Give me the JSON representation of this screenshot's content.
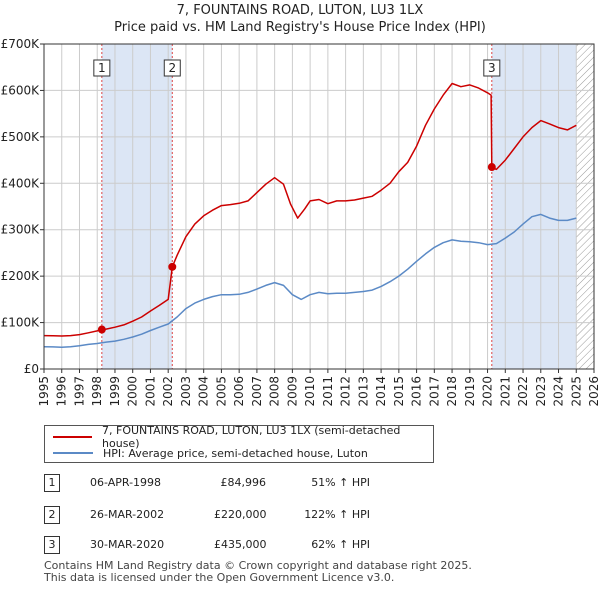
{
  "title": {
    "line1": "7, FOUNTAINS ROAD, LUTON, LU3 1LX",
    "line2": "Price paid vs. HM Land Registry's House Price Index (HPI)"
  },
  "colors": {
    "property": "#cc0000",
    "hpi": "#5b8ac6",
    "shade": "#dce6f5",
    "marker_line": "#dd4444",
    "grid": "#cccccc"
  },
  "legend": {
    "property_label": "7, FOUNTAINS ROAD, LUTON, LU3 1LX (semi-detached house)",
    "hpi_label": "HPI: Average price, semi-detached house, Luton"
  },
  "sales": [
    {
      "num": "1",
      "date": "06-APR-1998",
      "price": "£84,996",
      "hpi": "51% ↑ HPI"
    },
    {
      "num": "2",
      "date": "26-MAR-2002",
      "price": "£220,000",
      "hpi": "122% ↑ HPI"
    },
    {
      "num": "3",
      "date": "30-MAR-2020",
      "price": "£435,000",
      "hpi": "62% ↑ HPI"
    }
  ],
  "footer": {
    "line1": "Contains HM Land Registry data © Crown copyright and database right 2025.",
    "line2": "This data is licensed under the Open Government Licence v3.0."
  },
  "chart_data": {
    "type": "line",
    "xlim": [
      1995,
      2026
    ],
    "ylim": [
      0,
      700000
    ],
    "x_ticks": [
      "1995",
      "1996",
      "1997",
      "1998",
      "1999",
      "2000",
      "2001",
      "2002",
      "2003",
      "2004",
      "2005",
      "2006",
      "2007",
      "2008",
      "2009",
      "2010",
      "2011",
      "2012",
      "2013",
      "2014",
      "2015",
      "2016",
      "2017",
      "2018",
      "2019",
      "2020",
      "2021",
      "2022",
      "2023",
      "2024",
      "2025",
      "2026"
    ],
    "y_ticks": [
      {
        "value": 0,
        "label": "£0"
      },
      {
        "value": 100000,
        "label": "£100K"
      },
      {
        "value": 200000,
        "label": "£200K"
      },
      {
        "value": 300000,
        "label": "£300K"
      },
      {
        "value": 400000,
        "label": "£400K"
      },
      {
        "value": 500000,
        "label": "£500K"
      },
      {
        "value": 600000,
        "label": "£600K"
      },
      {
        "value": 700000,
        "label": "£700K"
      }
    ],
    "grid": true,
    "shaded_ranges": [
      [
        1998.26,
        2002.23
      ],
      [
        2020.24,
        2025.0
      ]
    ],
    "hatched_range": [
      2025.0,
      2026
    ],
    "sale_markers": [
      {
        "label": "1",
        "x": 1998.26,
        "y": 84996
      },
      {
        "label": "2",
        "x": 2002.23,
        "y": 220000
      },
      {
        "label": "3",
        "x": 2020.24,
        "y": 435000
      }
    ],
    "series": [
      {
        "name": "7, FOUNTAINS ROAD, LUTON, LU3 1LX (semi-detached house)",
        "points": [
          [
            1995.0,
            72000
          ],
          [
            1995.5,
            71500
          ],
          [
            1996.0,
            71000
          ],
          [
            1996.5,
            72000
          ],
          [
            1997.0,
            74000
          ],
          [
            1997.5,
            78000
          ],
          [
            1998.0,
            82000
          ],
          [
            1998.26,
            84996
          ],
          [
            1998.5,
            86000
          ],
          [
            1999.0,
            90000
          ],
          [
            1999.5,
            95000
          ],
          [
            2000.0,
            103000
          ],
          [
            2000.5,
            112000
          ],
          [
            2001.0,
            125000
          ],
          [
            2001.5,
            137000
          ],
          [
            2002.0,
            150000
          ],
          [
            2002.23,
            220000
          ],
          [
            2002.5,
            245000
          ],
          [
            2003.0,
            285000
          ],
          [
            2003.5,
            312000
          ],
          [
            2004.0,
            330000
          ],
          [
            2004.5,
            342000
          ],
          [
            2005.0,
            352000
          ],
          [
            2005.5,
            354000
          ],
          [
            2006.0,
            357000
          ],
          [
            2006.5,
            362000
          ],
          [
            2007.0,
            380000
          ],
          [
            2007.5,
            398000
          ],
          [
            2008.0,
            412000
          ],
          [
            2008.5,
            398000
          ],
          [
            2008.9,
            355000
          ],
          [
            2009.3,
            325000
          ],
          [
            2009.7,
            345000
          ],
          [
            2010.0,
            362000
          ],
          [
            2010.5,
            365000
          ],
          [
            2011.0,
            356000
          ],
          [
            2011.5,
            362000
          ],
          [
            2012.0,
            362000
          ],
          [
            2012.5,
            364000
          ],
          [
            2013.0,
            368000
          ],
          [
            2013.5,
            372000
          ],
          [
            2014.0,
            385000
          ],
          [
            2014.5,
            400000
          ],
          [
            2015.0,
            425000
          ],
          [
            2015.5,
            445000
          ],
          [
            2016.0,
            480000
          ],
          [
            2016.5,
            525000
          ],
          [
            2017.0,
            560000
          ],
          [
            2017.5,
            590000
          ],
          [
            2018.0,
            615000
          ],
          [
            2018.5,
            608000
          ],
          [
            2019.0,
            612000
          ],
          [
            2019.5,
            605000
          ],
          [
            2020.0,
            595000
          ],
          [
            2020.2,
            590000
          ],
          [
            2020.24,
            435000
          ],
          [
            2020.5,
            430000
          ],
          [
            2021.0,
            450000
          ],
          [
            2021.5,
            475000
          ],
          [
            2022.0,
            500000
          ],
          [
            2022.5,
            520000
          ],
          [
            2023.0,
            535000
          ],
          [
            2023.5,
            528000
          ],
          [
            2024.0,
            520000
          ],
          [
            2024.5,
            515000
          ],
          [
            2025.0,
            525000
          ]
        ]
      },
      {
        "name": "HPI: Average price, semi-detached house, Luton",
        "points": [
          [
            1995.0,
            48000
          ],
          [
            1995.5,
            47500
          ],
          [
            1996.0,
            47000
          ],
          [
            1996.5,
            48000
          ],
          [
            1997.0,
            50000
          ],
          [
            1997.5,
            53000
          ],
          [
            1998.0,
            55000
          ],
          [
            1998.5,
            58000
          ],
          [
            1999.0,
            60000
          ],
          [
            1999.5,
            64000
          ],
          [
            2000.0,
            69000
          ],
          [
            2000.5,
            75000
          ],
          [
            2001.0,
            83000
          ],
          [
            2001.5,
            90000
          ],
          [
            2002.0,
            97000
          ],
          [
            2002.5,
            112000
          ],
          [
            2003.0,
            130000
          ],
          [
            2003.5,
            142000
          ],
          [
            2004.0,
            150000
          ],
          [
            2004.5,
            156000
          ],
          [
            2005.0,
            160000
          ],
          [
            2005.5,
            160000
          ],
          [
            2006.0,
            161000
          ],
          [
            2006.5,
            165000
          ],
          [
            2007.0,
            172000
          ],
          [
            2007.5,
            180000
          ],
          [
            2008.0,
            186000
          ],
          [
            2008.5,
            180000
          ],
          [
            2009.0,
            160000
          ],
          [
            2009.5,
            150000
          ],
          [
            2010.0,
            160000
          ],
          [
            2010.5,
            165000
          ],
          [
            2011.0,
            162000
          ],
          [
            2011.5,
            163000
          ],
          [
            2012.0,
            163000
          ],
          [
            2012.5,
            165000
          ],
          [
            2013.0,
            167000
          ],
          [
            2013.5,
            170000
          ],
          [
            2014.0,
            178000
          ],
          [
            2014.5,
            188000
          ],
          [
            2015.0,
            200000
          ],
          [
            2015.5,
            215000
          ],
          [
            2016.0,
            232000
          ],
          [
            2016.5,
            248000
          ],
          [
            2017.0,
            262000
          ],
          [
            2017.5,
            272000
          ],
          [
            2018.0,
            278000
          ],
          [
            2018.5,
            275000
          ],
          [
            2019.0,
            274000
          ],
          [
            2019.5,
            272000
          ],
          [
            2020.0,
            268000
          ],
          [
            2020.5,
            270000
          ],
          [
            2021.0,
            282000
          ],
          [
            2021.5,
            295000
          ],
          [
            2022.0,
            312000
          ],
          [
            2022.5,
            328000
          ],
          [
            2023.0,
            333000
          ],
          [
            2023.5,
            325000
          ],
          [
            2024.0,
            320000
          ],
          [
            2024.5,
            320000
          ],
          [
            2025.0,
            325000
          ]
        ]
      }
    ]
  }
}
